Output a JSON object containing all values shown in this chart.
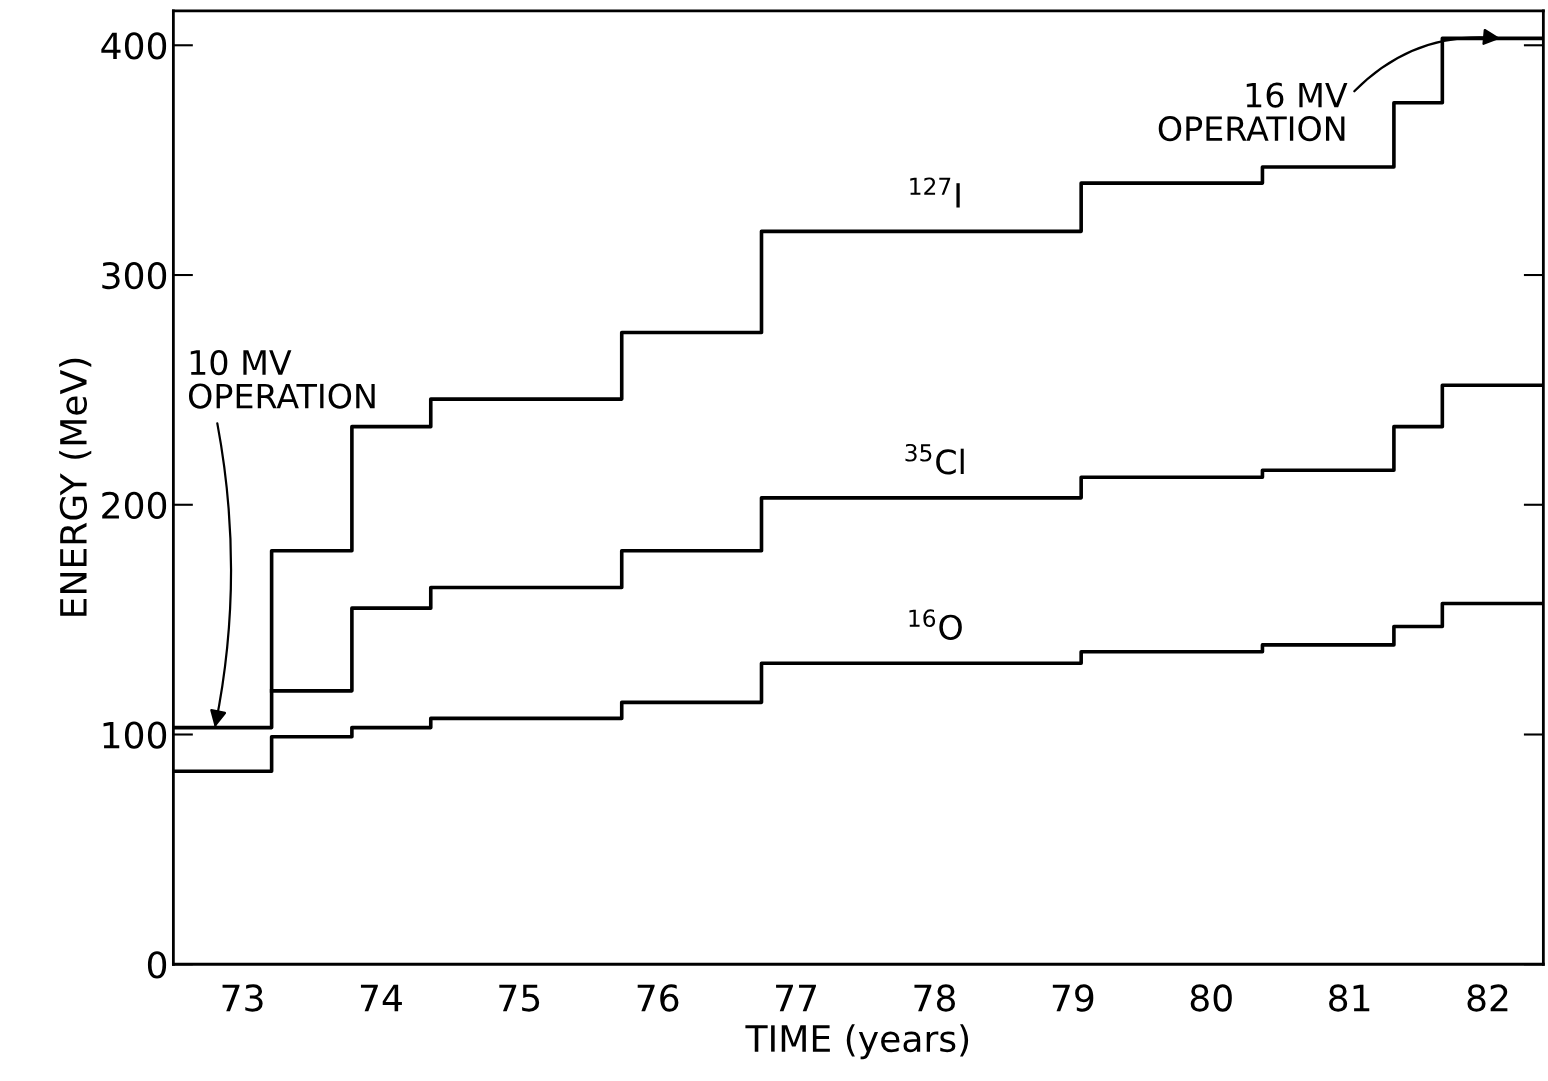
{
  "chart_data": {
    "type": "step",
    "xlabel": "TIME (years)",
    "ylabel": "ENERGY (MeV)",
    "xlim": [
      72.5,
      82.4
    ],
    "ylim": [
      0,
      415
    ],
    "xticks": [
      73,
      74,
      75,
      76,
      77,
      78,
      79,
      80,
      81,
      82
    ],
    "yticks": [
      0,
      100,
      200,
      300,
      400
    ],
    "grid": false,
    "legend": false,
    "marker": "none",
    "line_style": "solid",
    "series": [
      {
        "name": "$^{127}$I",
        "color": "#000000",
        "x": [
          72.5,
          73.21,
          73.79,
          74.36,
          75.74,
          76.75,
          79.06,
          80.37,
          81.32,
          81.67,
          82.4
        ],
        "values": [
          103,
          180,
          234,
          246,
          275,
          319,
          340,
          347,
          375,
          403,
          403
        ]
      },
      {
        "name": "$^{35}$Cl",
        "color": "#000000",
        "x": [
          73.21,
          73.79,
          74.36,
          75.74,
          76.75,
          79.06,
          80.37,
          81.32,
          81.67,
          82.4
        ],
        "values": [
          119,
          155,
          164,
          180,
          203,
          212,
          215,
          234,
          252,
          252
        ]
      },
      {
        "name": "$^{16}$O",
        "color": "#000000",
        "x": [
          72.5,
          73.21,
          73.79,
          74.36,
          75.74,
          76.75,
          79.06,
          80.37,
          81.32,
          81.67,
          82.4
        ],
        "values": [
          84,
          99,
          103,
          107,
          114,
          131,
          136,
          139,
          147,
          157,
          157
        ]
      }
    ],
    "annotations": [
      {
        "text": "10 MV\nOPERATION",
        "x": 72.8,
        "y": 103
      },
      {
        "text": "16 MV\nOPERATION",
        "x": 82.09,
        "y": 403
      }
    ]
  }
}
